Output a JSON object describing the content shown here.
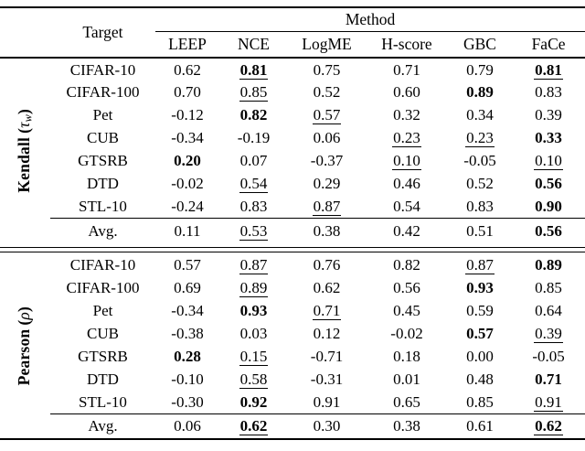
{
  "table": {
    "target_header": "Target",
    "method_header": "Method",
    "method_columns": [
      "LEEP",
      "NCE",
      "LogME",
      "H-score",
      "GBC",
      "FaCe"
    ],
    "sections": [
      {
        "name": "Kendall",
        "paren_open": "(",
        "symbol": "τ",
        "subscript": "w",
        "paren_close": ")",
        "rows": [
          {
            "target": "CIFAR-10",
            "cells": [
              {
                "v": "0.62",
                "s": ""
              },
              {
                "v": "0.81",
                "s": "bu"
              },
              {
                "v": "0.75",
                "s": ""
              },
              {
                "v": "0.71",
                "s": ""
              },
              {
                "v": "0.79",
                "s": ""
              },
              {
                "v": "0.81",
                "s": "bu"
              }
            ]
          },
          {
            "target": "CIFAR-100",
            "cells": [
              {
                "v": "0.70",
                "s": ""
              },
              {
                "v": "0.85",
                "s": "u"
              },
              {
                "v": "0.52",
                "s": ""
              },
              {
                "v": "0.60",
                "s": ""
              },
              {
                "v": "0.89",
                "s": "b"
              },
              {
                "v": "0.83",
                "s": ""
              }
            ]
          },
          {
            "target": "Pet",
            "cells": [
              {
                "v": "-0.12",
                "s": ""
              },
              {
                "v": "0.82",
                "s": "b"
              },
              {
                "v": "0.57",
                "s": "u"
              },
              {
                "v": "0.32",
                "s": ""
              },
              {
                "v": "0.34",
                "s": ""
              },
              {
                "v": "0.39",
                "s": ""
              }
            ]
          },
          {
            "target": "CUB",
            "cells": [
              {
                "v": "-0.34",
                "s": ""
              },
              {
                "v": "-0.19",
                "s": ""
              },
              {
                "v": "0.06",
                "s": ""
              },
              {
                "v": "0.23",
                "s": "u"
              },
              {
                "v": "0.23",
                "s": "u"
              },
              {
                "v": "0.33",
                "s": "b"
              }
            ]
          },
          {
            "target": "GTSRB",
            "cells": [
              {
                "v": "0.20",
                "s": "b"
              },
              {
                "v": "0.07",
                "s": ""
              },
              {
                "v": "-0.37",
                "s": ""
              },
              {
                "v": "0.10",
                "s": "u"
              },
              {
                "v": "-0.05",
                "s": ""
              },
              {
                "v": "0.10",
                "s": "u"
              }
            ]
          },
          {
            "target": "DTD",
            "cells": [
              {
                "v": "-0.02",
                "s": ""
              },
              {
                "v": "0.54",
                "s": "u"
              },
              {
                "v": "0.29",
                "s": ""
              },
              {
                "v": "0.46",
                "s": ""
              },
              {
                "v": "0.52",
                "s": ""
              },
              {
                "v": "0.56",
                "s": "b"
              }
            ]
          },
          {
            "target": "STL-10",
            "cells": [
              {
                "v": "-0.24",
                "s": ""
              },
              {
                "v": "0.83",
                "s": ""
              },
              {
                "v": "0.87",
                "s": "u"
              },
              {
                "v": "0.54",
                "s": ""
              },
              {
                "v": "0.83",
                "s": ""
              },
              {
                "v": "0.90",
                "s": "b"
              }
            ]
          }
        ],
        "avg": {
          "label": "Avg.",
          "cells": [
            {
              "v": "0.11",
              "s": ""
            },
            {
              "v": "0.53",
              "s": "u"
            },
            {
              "v": "0.38",
              "s": ""
            },
            {
              "v": "0.42",
              "s": ""
            },
            {
              "v": "0.51",
              "s": ""
            },
            {
              "v": "0.56",
              "s": "b"
            }
          ]
        }
      },
      {
        "name": "Pearson",
        "paren_open": "(",
        "symbol": "ρ",
        "subscript": "",
        "paren_close": ")",
        "rows": [
          {
            "target": "CIFAR-10",
            "cells": [
              {
                "v": "0.57",
                "s": ""
              },
              {
                "v": "0.87",
                "s": "u"
              },
              {
                "v": "0.76",
                "s": ""
              },
              {
                "v": "0.82",
                "s": ""
              },
              {
                "v": "0.87",
                "s": "u"
              },
              {
                "v": "0.89",
                "s": "b"
              }
            ]
          },
          {
            "target": "CIFAR-100",
            "cells": [
              {
                "v": "0.69",
                "s": ""
              },
              {
                "v": "0.89",
                "s": "u"
              },
              {
                "v": "0.62",
                "s": ""
              },
              {
                "v": "0.56",
                "s": ""
              },
              {
                "v": "0.93",
                "s": "b"
              },
              {
                "v": "0.85",
                "s": ""
              }
            ]
          },
          {
            "target": "Pet",
            "cells": [
              {
                "v": "-0.34",
                "s": ""
              },
              {
                "v": "0.93",
                "s": "b"
              },
              {
                "v": "0.71",
                "s": "u"
              },
              {
                "v": "0.45",
                "s": ""
              },
              {
                "v": "0.59",
                "s": ""
              },
              {
                "v": "0.64",
                "s": ""
              }
            ]
          },
          {
            "target": "CUB",
            "cells": [
              {
                "v": "-0.38",
                "s": ""
              },
              {
                "v": "0.03",
                "s": ""
              },
              {
                "v": "0.12",
                "s": ""
              },
              {
                "v": "-0.02",
                "s": ""
              },
              {
                "v": "0.57",
                "s": "b"
              },
              {
                "v": "0.39",
                "s": "u"
              }
            ]
          },
          {
            "target": "GTSRB",
            "cells": [
              {
                "v": "0.28",
                "s": "b"
              },
              {
                "v": "0.15",
                "s": "u"
              },
              {
                "v": "-0.71",
                "s": ""
              },
              {
                "v": "0.18",
                "s": ""
              },
              {
                "v": "0.00",
                "s": ""
              },
              {
                "v": "-0.05",
                "s": ""
              }
            ]
          },
          {
            "target": "DTD",
            "cells": [
              {
                "v": "-0.10",
                "s": ""
              },
              {
                "v": "0.58",
                "s": "u"
              },
              {
                "v": "-0.31",
                "s": ""
              },
              {
                "v": "0.01",
                "s": ""
              },
              {
                "v": "0.48",
                "s": ""
              },
              {
                "v": "0.71",
                "s": "b"
              }
            ]
          },
          {
            "target": "STL-10",
            "cells": [
              {
                "v": "-0.30",
                "s": ""
              },
              {
                "v": "0.92",
                "s": "b"
              },
              {
                "v": "0.91",
                "s": ""
              },
              {
                "v": "0.65",
                "s": ""
              },
              {
                "v": "0.85",
                "s": ""
              },
              {
                "v": "0.91",
                "s": "u"
              }
            ]
          }
        ],
        "avg": {
          "label": "Avg.",
          "cells": [
            {
              "v": "0.06",
              "s": ""
            },
            {
              "v": "0.62",
              "s": "bu"
            },
            {
              "v": "0.30",
              "s": ""
            },
            {
              "v": "0.38",
              "s": ""
            },
            {
              "v": "0.61",
              "s": ""
            },
            {
              "v": "0.62",
              "s": "bu"
            }
          ]
        }
      }
    ]
  }
}
